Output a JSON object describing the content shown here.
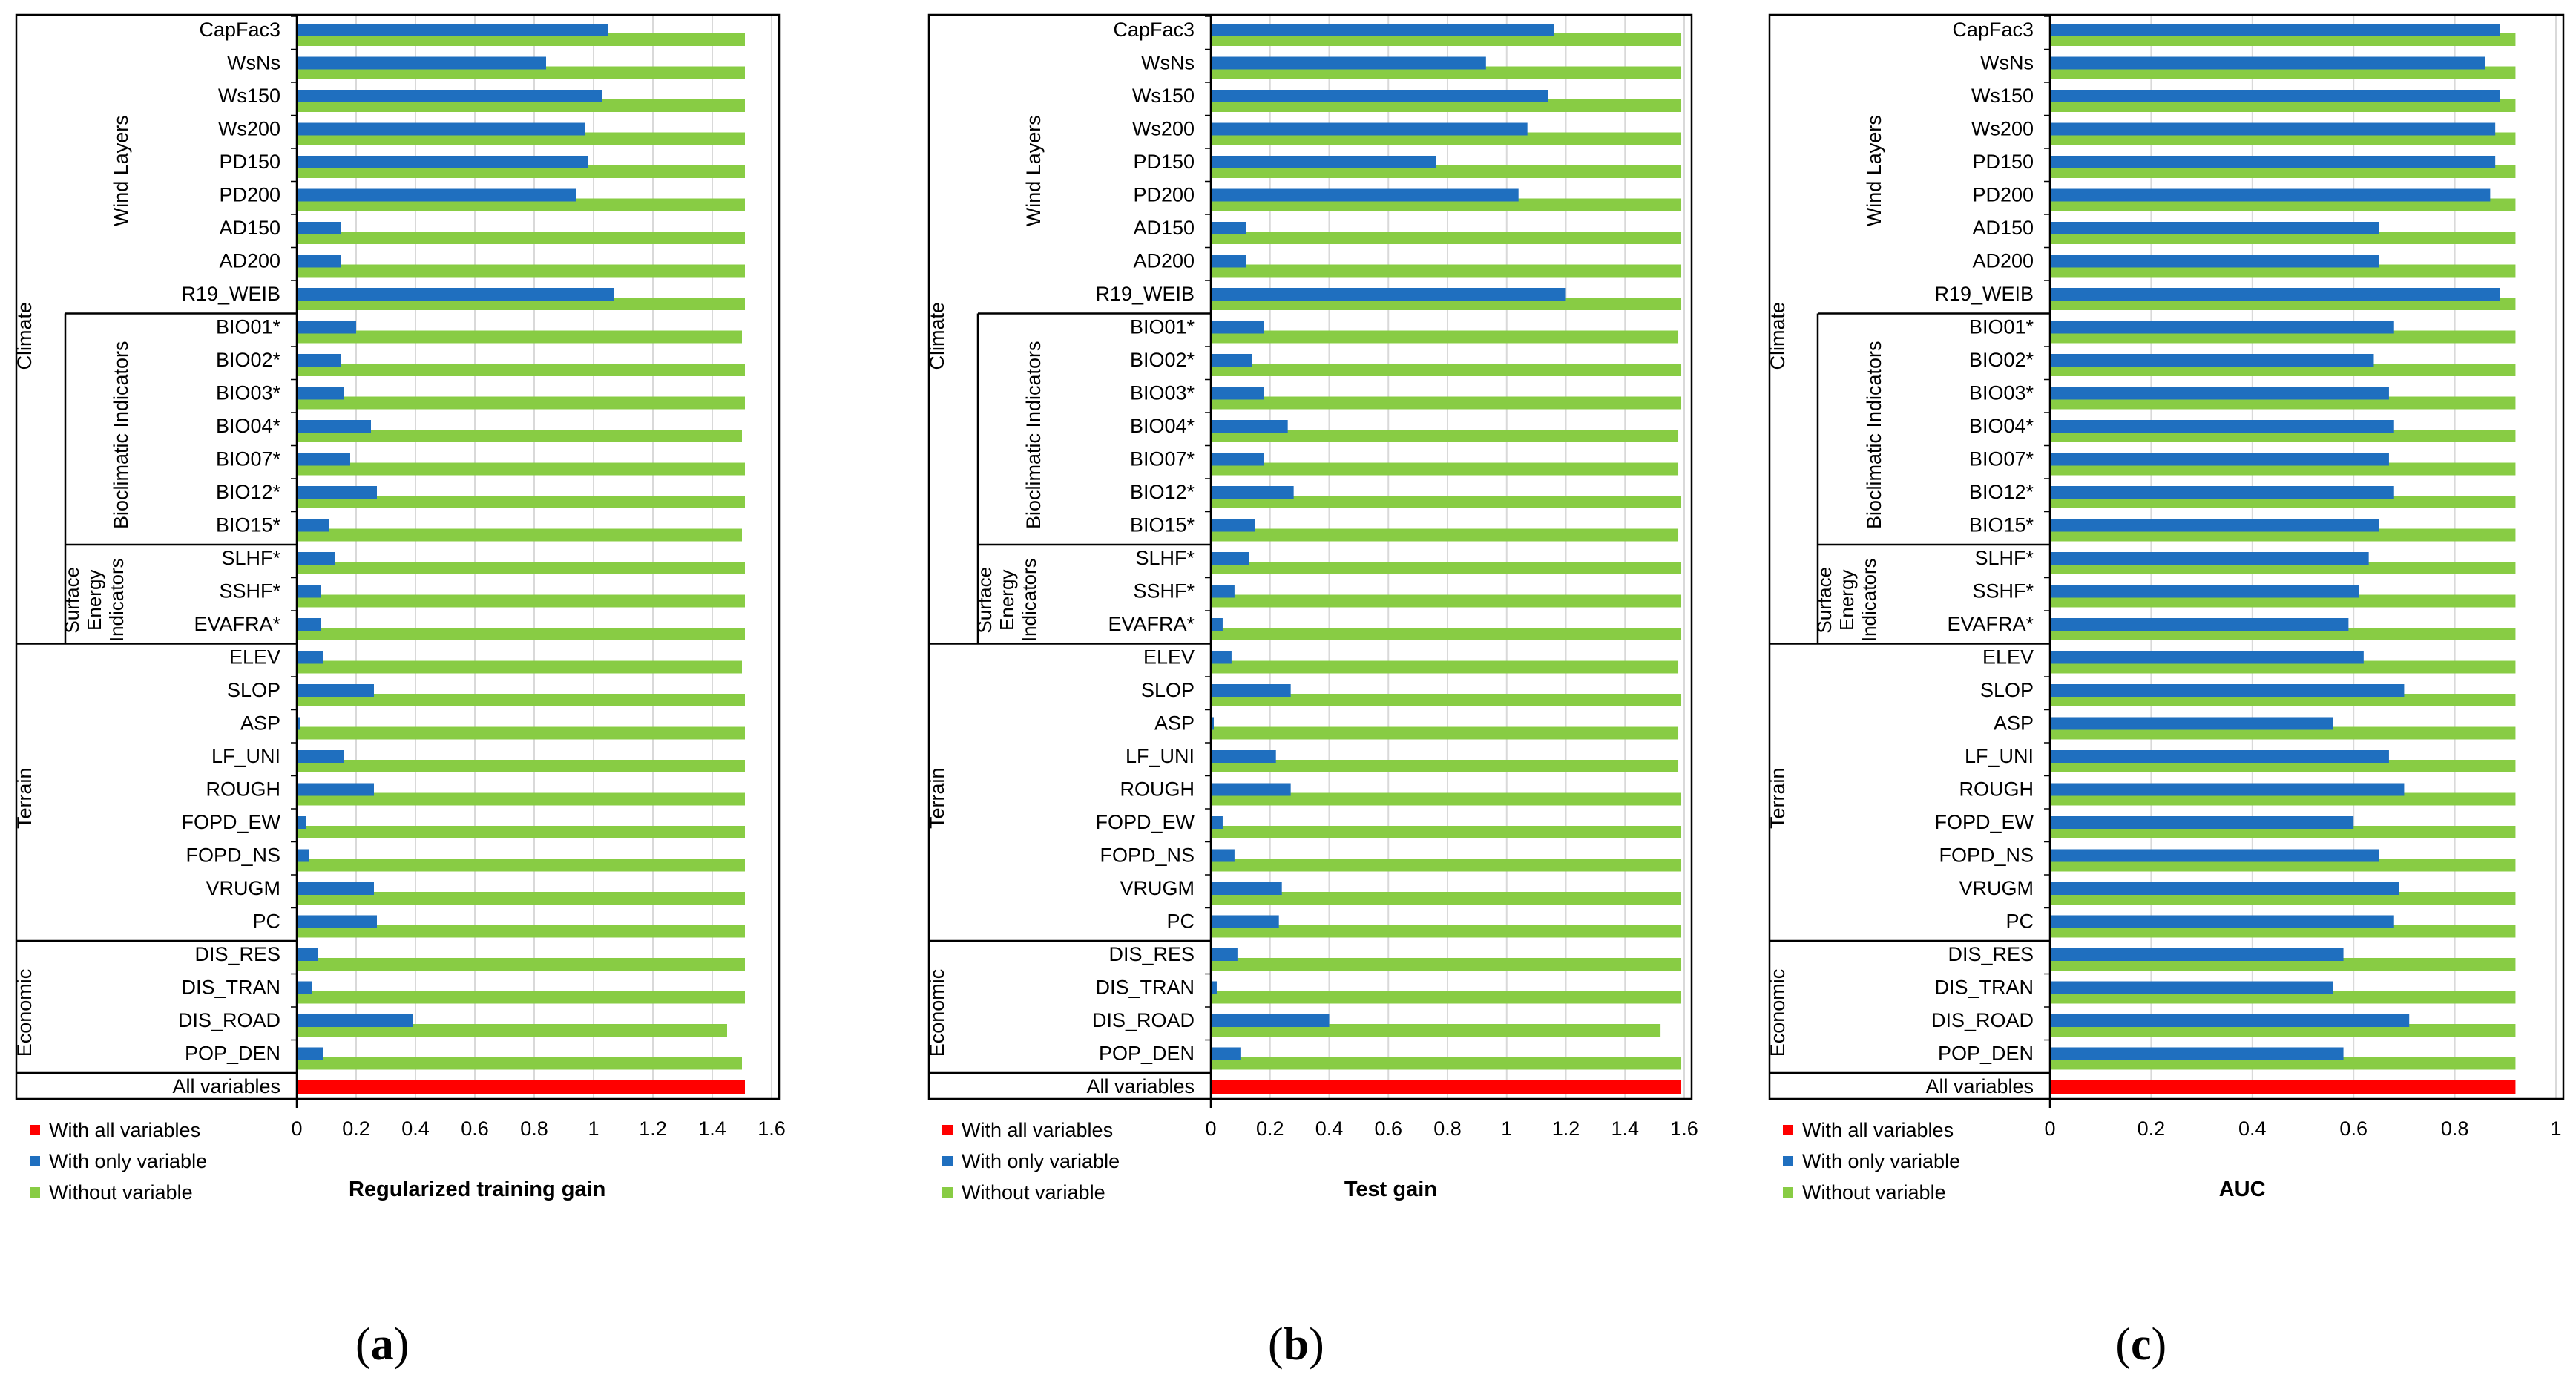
{
  "colors": {
    "with_all": "#ff0000",
    "with_only": "#1f6fbf",
    "without": "#88cc44",
    "frame": "#000000",
    "grid": "#d9d9d9"
  },
  "groups": {
    "climate": "Climate",
    "wind_layers": "Wind Layers",
    "bioclimatic": "Bioclimatic Indicators",
    "surface_energy": [
      "Surface",
      "Energy",
      "Indicators"
    ],
    "terrain": "Terrain",
    "economic": "Economic"
  },
  "chart_data": [
    {
      "type": "bar",
      "orientation": "horizontal",
      "caption_letter": "a",
      "xlabel": "Regularized training gain",
      "xlim": [
        0,
        1.6
      ],
      "xticks": [
        "0",
        "0.2",
        "0.4",
        "0.6",
        "0.8",
        "1",
        "1.2",
        "1.4",
        "1.6"
      ],
      "categories": [
        "CapFac3",
        "WsNs",
        "Ws150",
        "Ws200",
        "PD150",
        "PD200",
        "AD150",
        "AD200",
        "R19_WEIB",
        "BIO01*",
        "BIO02*",
        "BIO03*",
        "BIO04*",
        "BIO07*",
        "BIO12*",
        "BIO15*",
        "SLHF*",
        "SSHF*",
        "EVAFRA*",
        "ELEV",
        "SLOP",
        "ASP",
        "LF_UNI",
        "ROUGH",
        "FOPD_EW",
        "FOPD_NS",
        "VRUGM",
        "PC",
        "DIS_RES",
        "DIS_TRAN",
        "DIS_ROAD",
        "POP_DEN"
      ],
      "all_variables_label": "All variables",
      "all_variables_value": 1.51,
      "series": [
        {
          "name": "With only variable",
          "values": [
            1.05,
            0.84,
            1.03,
            0.97,
            0.98,
            0.94,
            0.15,
            0.15,
            1.07,
            0.2,
            0.15,
            0.16,
            0.25,
            0.18,
            0.27,
            0.11,
            0.13,
            0.08,
            0.08,
            0.09,
            0.26,
            0.01,
            0.16,
            0.26,
            0.03,
            0.04,
            0.26,
            0.27,
            0.07,
            0.05,
            0.39,
            0.09
          ]
        },
        {
          "name": "Without variable",
          "values": [
            1.51,
            1.51,
            1.51,
            1.51,
            1.51,
            1.51,
            1.51,
            1.51,
            1.51,
            1.5,
            1.51,
            1.51,
            1.5,
            1.51,
            1.51,
            1.5,
            1.51,
            1.51,
            1.51,
            1.5,
            1.51,
            1.51,
            1.51,
            1.51,
            1.51,
            1.51,
            1.51,
            1.51,
            1.51,
            1.51,
            1.45,
            1.5
          ]
        }
      ]
    },
    {
      "type": "bar",
      "orientation": "horizontal",
      "caption_letter": "b",
      "xlabel": "Test gain",
      "xlim": [
        0,
        1.6
      ],
      "xticks": [
        "0",
        "0.2",
        "0.4",
        "0.6",
        "0.8",
        "1",
        "1.2",
        "1.4",
        "1.6"
      ],
      "categories": [
        "CapFac3",
        "WsNs",
        "Ws150",
        "Ws200",
        "PD150",
        "PD200",
        "AD150",
        "AD200",
        "R19_WEIB",
        "BIO01*",
        "BIO02*",
        "BIO03*",
        "BIO04*",
        "BIO07*",
        "BIO12*",
        "BIO15*",
        "SLHF*",
        "SSHF*",
        "EVAFRA*",
        "ELEV",
        "SLOP",
        "ASP",
        "LF_UNI",
        "ROUGH",
        "FOPD_EW",
        "FOPD_NS",
        "VRUGM",
        "PC",
        "DIS_RES",
        "DIS_TRAN",
        "DIS_ROAD",
        "POP_DEN"
      ],
      "all_variables_label": "All variables",
      "all_variables_value": 1.59,
      "series": [
        {
          "name": "With only variable",
          "values": [
            1.16,
            0.93,
            1.14,
            1.07,
            0.76,
            1.04,
            0.12,
            0.12,
            1.2,
            0.18,
            0.14,
            0.18,
            0.26,
            0.18,
            0.28,
            0.15,
            0.13,
            0.08,
            0.04,
            0.07,
            0.27,
            0.01,
            0.22,
            0.27,
            0.04,
            0.08,
            0.24,
            0.23,
            0.09,
            0.02,
            0.4,
            0.1
          ]
        },
        {
          "name": "Without variable",
          "values": [
            1.59,
            1.59,
            1.59,
            1.59,
            1.59,
            1.59,
            1.59,
            1.59,
            1.59,
            1.58,
            1.59,
            1.59,
            1.58,
            1.58,
            1.59,
            1.58,
            1.59,
            1.59,
            1.59,
            1.58,
            1.59,
            1.58,
            1.58,
            1.59,
            1.59,
            1.59,
            1.59,
            1.59,
            1.59,
            1.59,
            1.52,
            1.59
          ]
        }
      ]
    },
    {
      "type": "bar",
      "orientation": "horizontal",
      "caption_letter": "c",
      "xlabel": "AUC",
      "xlim": [
        0,
        1
      ],
      "xticks": [
        "0",
        "0.2",
        "0.4",
        "0.6",
        "0.8",
        "1"
      ],
      "categories": [
        "CapFac3",
        "WsNs",
        "Ws150",
        "Ws200",
        "PD150",
        "PD200",
        "AD150",
        "AD200",
        "R19_WEIB",
        "BIO01*",
        "BIO02*",
        "BIO03*",
        "BIO04*",
        "BIO07*",
        "BIO12*",
        "BIO15*",
        "SLHF*",
        "SSHF*",
        "EVAFRA*",
        "ELEV",
        "SLOP",
        "ASP",
        "LF_UNI",
        "ROUGH",
        "FOPD_EW",
        "FOPD_NS",
        "VRUGM",
        "PC",
        "DIS_RES",
        "DIS_TRAN",
        "DIS_ROAD",
        "POP_DEN"
      ],
      "all_variables_label": "All variables",
      "all_variables_value": 0.92,
      "series": [
        {
          "name": "With only variable",
          "values": [
            0.89,
            0.86,
            0.89,
            0.88,
            0.88,
            0.87,
            0.65,
            0.65,
            0.89,
            0.68,
            0.64,
            0.67,
            0.68,
            0.67,
            0.68,
            0.65,
            0.63,
            0.61,
            0.59,
            0.62,
            0.7,
            0.56,
            0.67,
            0.7,
            0.6,
            0.65,
            0.69,
            0.68,
            0.58,
            0.56,
            0.71,
            0.58
          ]
        },
        {
          "name": "Without variable",
          "values": [
            0.92,
            0.92,
            0.92,
            0.92,
            0.92,
            0.92,
            0.92,
            0.92,
            0.92,
            0.92,
            0.92,
            0.92,
            0.92,
            0.92,
            0.92,
            0.92,
            0.92,
            0.92,
            0.92,
            0.92,
            0.92,
            0.92,
            0.92,
            0.92,
            0.92,
            0.92,
            0.92,
            0.92,
            0.92,
            0.92,
            0.92,
            0.92
          ]
        }
      ]
    }
  ],
  "legend_labels": [
    "With all variables",
    "With only variable",
    "Without variable"
  ]
}
